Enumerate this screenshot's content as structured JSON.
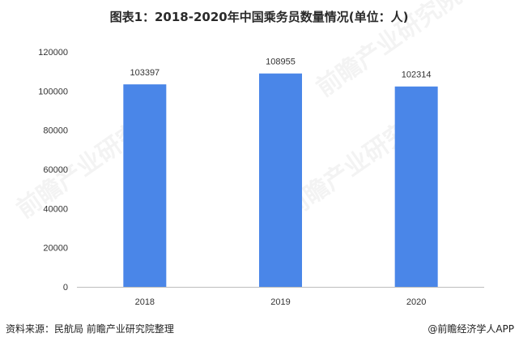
{
  "chart_data": {
    "type": "bar",
    "title": "图表1：2018-2020年中国乘务员数量情况(单位：人)",
    "categories": [
      "2018",
      "2019",
      "2020"
    ],
    "values": [
      103397,
      108955,
      102314
    ],
    "data_labels": [
      "103397",
      "108955",
      "102314"
    ],
    "ylim": [
      0,
      120000
    ],
    "yticks": [
      "0",
      "20000",
      "40000",
      "60000",
      "80000",
      "100000",
      "120000"
    ],
    "grid": false,
    "legend": "none",
    "bar_color": "#4a86e8"
  },
  "footer": {
    "source": "资料来源：民航局 前瞻产业研究院整理",
    "credit": "@前瞻经济学人APP"
  },
  "watermark": {
    "text": "前瞻产业研究院"
  }
}
